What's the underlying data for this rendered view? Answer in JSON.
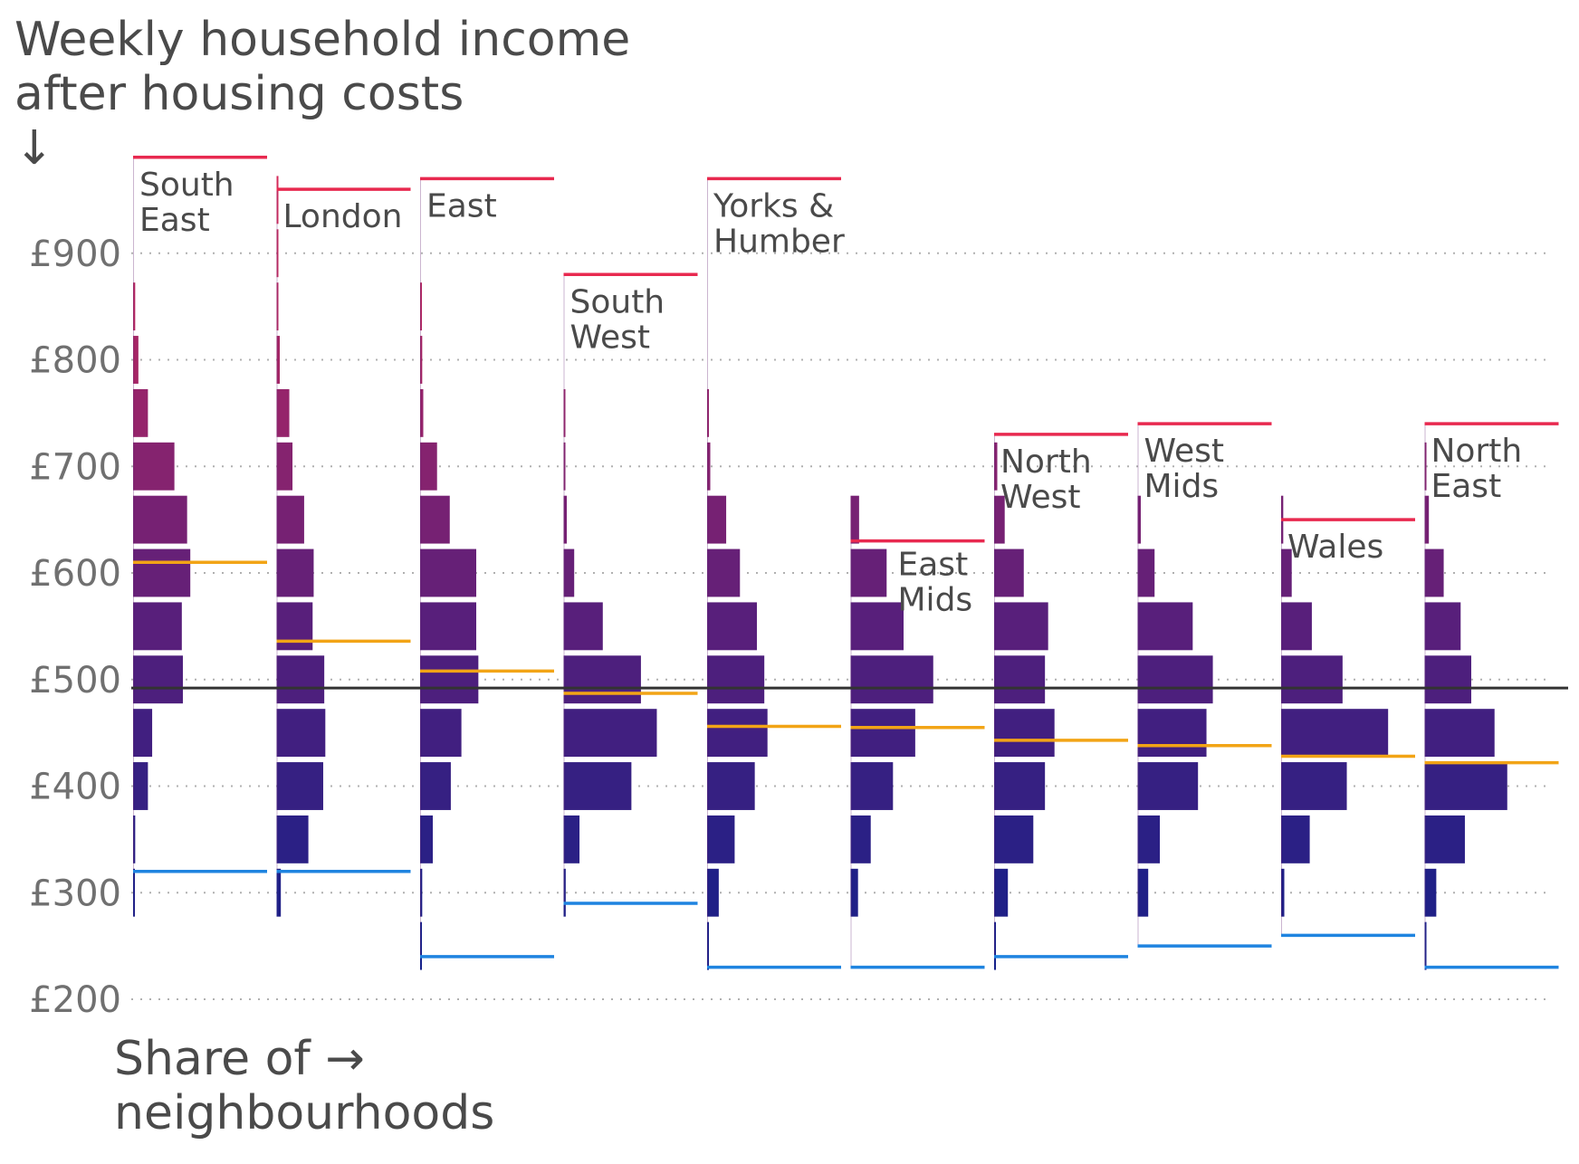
{
  "chart_data": {
    "type": "bar",
    "title": "",
    "ylabel": "Weekly household income\nafter housing costs\n↓",
    "xlabel": "Share of →\nneighbourhoods",
    "ylim": [
      200,
      1000
    ],
    "y_ticks": [
      "£200",
      "£300",
      "£400",
      "£500",
      "£600",
      "£700",
      "£800",
      "£900"
    ],
    "y_tick_values": [
      200,
      300,
      400,
      500,
      600,
      700,
      800,
      900
    ],
    "grid": true,
    "bin_width": 50,
    "bins": [
      250,
      300,
      350,
      400,
      450,
      500,
      550,
      600,
      650,
      700,
      750,
      800,
      850,
      900,
      950
    ],
    "reference_line": 492,
    "series": [
      {
        "name": "South\nEast",
        "max": 990,
        "median": 610,
        "min": 320,
        "values": [
          0,
          0.1,
          0.2,
          1.4,
          1.8,
          4.7,
          4.6,
          5.4,
          5.1,
          3.9,
          1.4,
          0.5,
          0.2,
          0,
          0
        ]
      },
      {
        "name": "London",
        "max": 960,
        "median": 536,
        "min": 320,
        "values": [
          0,
          0.4,
          3.0,
          4.4,
          4.6,
          4.5,
          3.4,
          3.5,
          2.6,
          1.5,
          1.2,
          0.3,
          0.1,
          0.1,
          0.1
        ]
      },
      {
        "name": "East",
        "max": 970,
        "median": 508,
        "min": 240,
        "values": [
          0.1,
          0.2,
          1.2,
          2.9,
          3.9,
          5.5,
          5.3,
          5.3,
          2.8,
          1.6,
          0.3,
          0.2,
          0.1,
          0,
          0
        ]
      },
      {
        "name": "South\nWest",
        "max": 880,
        "median": 487,
        "min": 290,
        "values": [
          0,
          0.2,
          1.5,
          6.4,
          8.8,
          7.3,
          3.7,
          1.0,
          0.3,
          0.1,
          0.1,
          0,
          0,
          0,
          0
        ]
      },
      {
        "name": "Yorks &\nHumber",
        "max": 970,
        "median": 456,
        "min": 230,
        "values": [
          0.1,
          1.1,
          2.6,
          4.5,
          5.7,
          5.4,
          4.7,
          3.1,
          1.8,
          0.3,
          0.1,
          0,
          0,
          0,
          0
        ]
      },
      {
        "name": "East\nMids",
        "max": 630,
        "median": 455,
        "min": 230,
        "values": [
          0,
          0.7,
          1.9,
          4.0,
          6.1,
          7.8,
          5.0,
          3.4,
          0.8,
          0,
          0,
          0,
          0,
          0,
          0
        ]
      },
      {
        "name": "North\nWest",
        "max": 730,
        "median": 443,
        "min": 240,
        "values": [
          0.1,
          1.3,
          3.7,
          4.8,
          5.7,
          4.8,
          5.1,
          2.8,
          1.0,
          0.3,
          0,
          0,
          0,
          0,
          0
        ]
      },
      {
        "name": "West\nMids",
        "max": 740,
        "median": 438,
        "min": 250,
        "values": [
          0,
          1.0,
          2.1,
          5.7,
          6.5,
          7.1,
          5.2,
          1.6,
          0.3,
          0,
          0,
          0,
          0,
          0,
          0
        ]
      },
      {
        "name": "Wales",
        "max": 650,
        "median": 428,
        "min": 260,
        "values": [
          0,
          0.3,
          2.7,
          6.2,
          10.1,
          5.8,
          2.9,
          1.0,
          0.2,
          0,
          0,
          0,
          0,
          0,
          0
        ]
      },
      {
        "name": "North\nEast",
        "max": 740,
        "median": 422,
        "min": 230,
        "values": [
          0.1,
          1.1,
          3.8,
          7.8,
          6.6,
          4.4,
          3.4,
          1.8,
          0.4,
          0.1,
          0,
          0,
          0,
          0,
          0
        ]
      }
    ],
    "colors": {
      "max_line": "#e8294f",
      "median_line": "#f2a416",
      "min_line": "#1f84e0",
      "reference_line": "#333333",
      "grid": "#b0b0b0",
      "bar_low": "#15208a",
      "bar_mid": "#5b1f7a",
      "bar_high": "#d42a5a"
    }
  }
}
